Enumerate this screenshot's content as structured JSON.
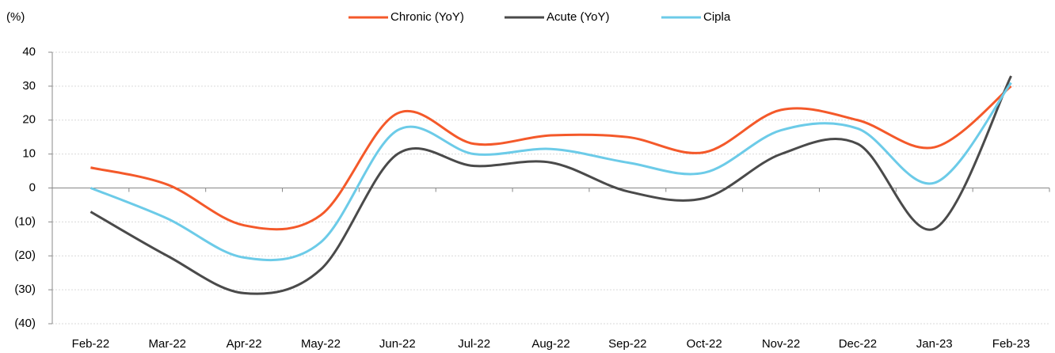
{
  "chart_data": {
    "type": "line",
    "y_label": "(%)",
    "categories": [
      "Feb-22",
      "Mar-22",
      "Apr-22",
      "May-22",
      "Jun-22",
      "Jul-22",
      "Aug-22",
      "Sep-22",
      "Oct-22",
      "Nov-22",
      "Dec-22",
      "Jan-23",
      "Feb-23"
    ],
    "series": [
      {
        "name": "Chronic (YoY)",
        "color": "#f4592a",
        "values": [
          6,
          1,
          -11,
          -8,
          22,
          13,
          15.5,
          15,
          10.5,
          23,
          20,
          12,
          30
        ]
      },
      {
        "name": "Acute (YoY)",
        "color": "#4a4a4a",
        "values": [
          -7,
          -20,
          -31,
          -24,
          10,
          6.5,
          7.5,
          -1,
          -3,
          10,
          13,
          -12,
          33
        ]
      },
      {
        "name": "Cipla",
        "color": "#6ccbe8",
        "values": [
          0,
          -9,
          -20.5,
          -16,
          17,
          10,
          11.5,
          7.5,
          4.5,
          17,
          17.5,
          1.5,
          31
        ]
      }
    ],
    "ylim": [
      -40,
      40
    ],
    "yticks": [
      {
        "value": -40,
        "label": "(40)"
      },
      {
        "value": -30,
        "label": "(30)"
      },
      {
        "value": -20,
        "label": "(20)"
      },
      {
        "value": -10,
        "label": "(10)"
      },
      0,
      10,
      20,
      30,
      40
    ],
    "grid": true,
    "legend": "top"
  }
}
